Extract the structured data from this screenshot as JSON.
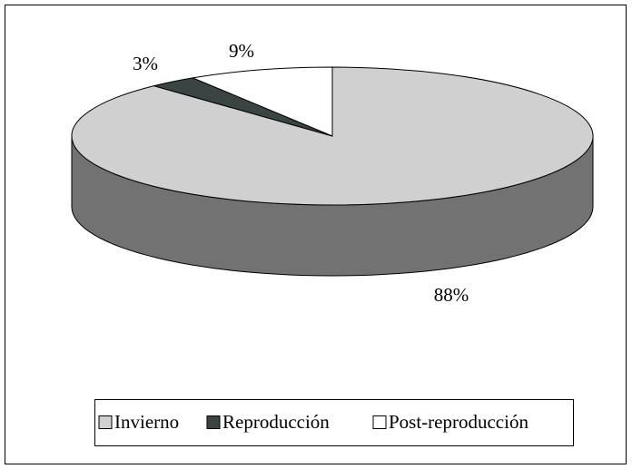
{
  "chart_data": {
    "type": "pie",
    "categories": [
      "Invierno",
      "Reproducción",
      "Post-reproducción"
    ],
    "values": [
      88,
      3,
      9
    ],
    "value_labels": [
      "88%",
      "3%",
      "9%"
    ],
    "colors": [
      "#d0d0d0",
      "#3a4442",
      "#ffffff"
    ],
    "legend": "bottom"
  }
}
